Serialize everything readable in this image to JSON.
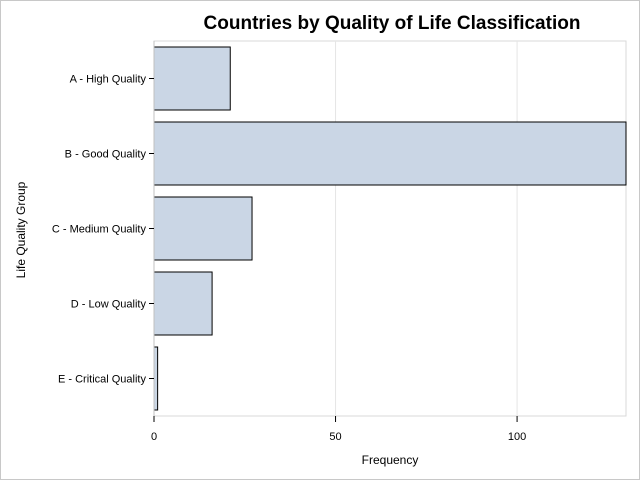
{
  "chart_data": {
    "type": "bar",
    "orientation": "horizontal",
    "title": "Countries by Quality of Life Classification",
    "xlabel": "Frequency",
    "ylabel": "Life Quality Group",
    "categories": [
      "A - High Quality",
      "B - Good Quality",
      "C - Medium Quality",
      "D - Low Quality",
      "E - Critical Quality"
    ],
    "values": [
      21,
      130,
      27,
      16,
      1
    ],
    "xlim": [
      0,
      130
    ],
    "xticks": [
      0,
      50,
      100
    ],
    "grid": true,
    "bar_color": "#cad6e5",
    "bar_edge_color": "#000000"
  }
}
